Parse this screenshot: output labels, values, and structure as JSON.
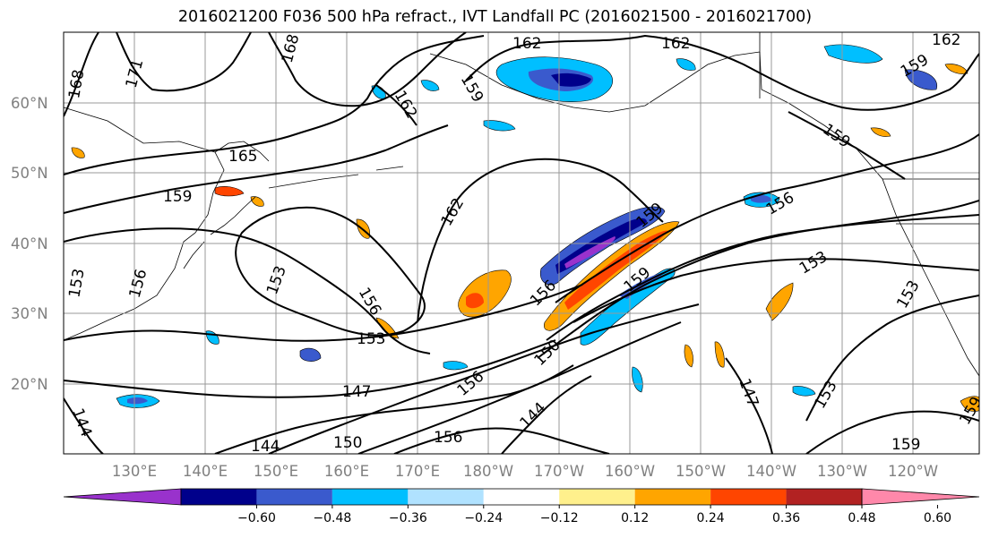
{
  "title": "2016021200 F036 500 hPa refract., IVT Landfall PC (2016021500 - 2016021700)",
  "lat_labels": [
    "60°N",
    "50°N",
    "40°N",
    "30°N",
    "20°N"
  ],
  "lon_labels": [
    "130°E",
    "140°E",
    "150°E",
    "160°E",
    "170°E",
    "180°W",
    "170°W",
    "160°W",
    "150°W",
    "140°W",
    "130°W",
    "120°W"
  ],
  "colorbar": {
    "labels": [
      "−0.60",
      "−0.48",
      "−0.36",
      "−0.24",
      "−0.12",
      "0.12",
      "0.24",
      "0.36",
      "0.48",
      "0.60"
    ],
    "colors": [
      "#9932cc",
      "#00008b",
      "#3a5acd",
      "#00bfff",
      "#b0e2ff",
      "#ffffff",
      "#fff08c",
      "#ffa500",
      "#ff4500",
      "#b22222",
      "#ff88aa"
    ]
  },
  "contour_labels": [
    {
      "text": "171"
    },
    {
      "text": "168"
    },
    {
      "text": "168"
    },
    {
      "text": "165"
    },
    {
      "text": "162"
    },
    {
      "text": "162"
    },
    {
      "text": "162"
    },
    {
      "text": "162"
    },
    {
      "text": "162"
    },
    {
      "text": "159"
    },
    {
      "text": "159"
    },
    {
      "text": "159"
    },
    {
      "text": "159"
    },
    {
      "text": "159"
    },
    {
      "text": "159"
    },
    {
      "text": "159"
    },
    {
      "text": "159"
    },
    {
      "text": "156"
    },
    {
      "text": "156"
    },
    {
      "text": "156"
    },
    {
      "text": "156"
    },
    {
      "text": "156"
    },
    {
      "text": "153"
    },
    {
      "text": "153"
    },
    {
      "text": "153"
    },
    {
      "text": "153"
    },
    {
      "text": "153"
    },
    {
      "text": "150"
    },
    {
      "text": "150"
    },
    {
      "text": "147"
    },
    {
      "text": "147"
    },
    {
      "text": "144"
    },
    {
      "text": "144"
    },
    {
      "text": "144"
    },
    {
      "text": "156"
    },
    {
      "text": "153"
    }
  ]
}
